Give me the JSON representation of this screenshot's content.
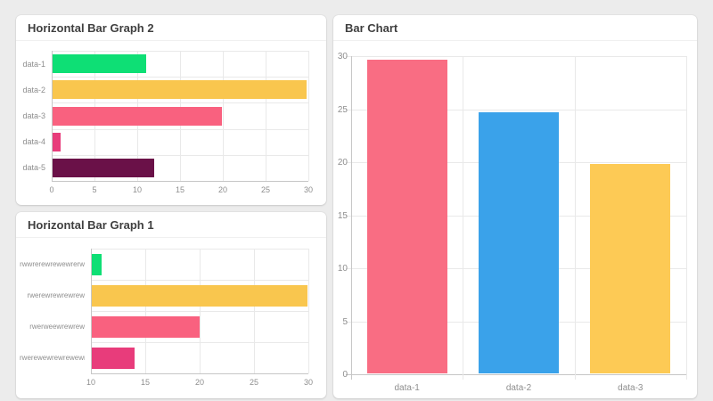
{
  "chart_data": [
    {
      "id": "hbar2",
      "type": "bar",
      "orientation": "horizontal",
      "title": "Horizontal Bar Graph 2",
      "categories": [
        "data-1",
        "data-2",
        "data-3",
        "data-4",
        "data-5"
      ],
      "values": [
        11,
        29.8,
        19.9,
        1,
        12
      ],
      "colors": [
        "#0edf75",
        "#f9c64e",
        "#f9617f",
        "#e83c7b",
        "#6a1148"
      ],
      "xlim": [
        0,
        30
      ],
      "xticks": [
        0,
        5,
        10,
        15,
        20,
        25,
        30
      ],
      "grid": true,
      "legend": "none"
    },
    {
      "id": "hbar1",
      "type": "bar",
      "orientation": "horizontal",
      "title": "Horizontal Bar Graph 1",
      "categories": [
        "rwwrerewrewewrerw",
        "rwerewrewrewrew",
        "rwerweewrewrew",
        "rwerewewrewrewewr"
      ],
      "values": [
        11,
        29.9,
        20,
        14
      ],
      "colors": [
        "#0edf75",
        "#f9c64e",
        "#f9617f",
        "#e83c7b"
      ],
      "xlim": [
        10,
        30
      ],
      "xticks": [
        10,
        15,
        20,
        25,
        30
      ],
      "grid": true,
      "legend": "none"
    },
    {
      "id": "vbar",
      "type": "bar",
      "orientation": "vertical",
      "title": "Bar Chart",
      "categories": [
        "data-1",
        "data-2",
        "data-3"
      ],
      "values": [
        29.7,
        24.7,
        19.8
      ],
      "colors": [
        "#f96d83",
        "#3aa2ea",
        "#fdca55"
      ],
      "ylim": [
        0,
        30
      ],
      "yticks": [
        0,
        5,
        10,
        15,
        20,
        25,
        30
      ],
      "grid": true,
      "legend": "none"
    }
  ],
  "colors": {
    "page_background": "#ececec",
    "card_background": "#ffffff",
    "grid": "#e9e9e9",
    "axis": "#c6c6c6",
    "tick_text": "#8e8e8e",
    "title_text": "#3f3f3f"
  }
}
